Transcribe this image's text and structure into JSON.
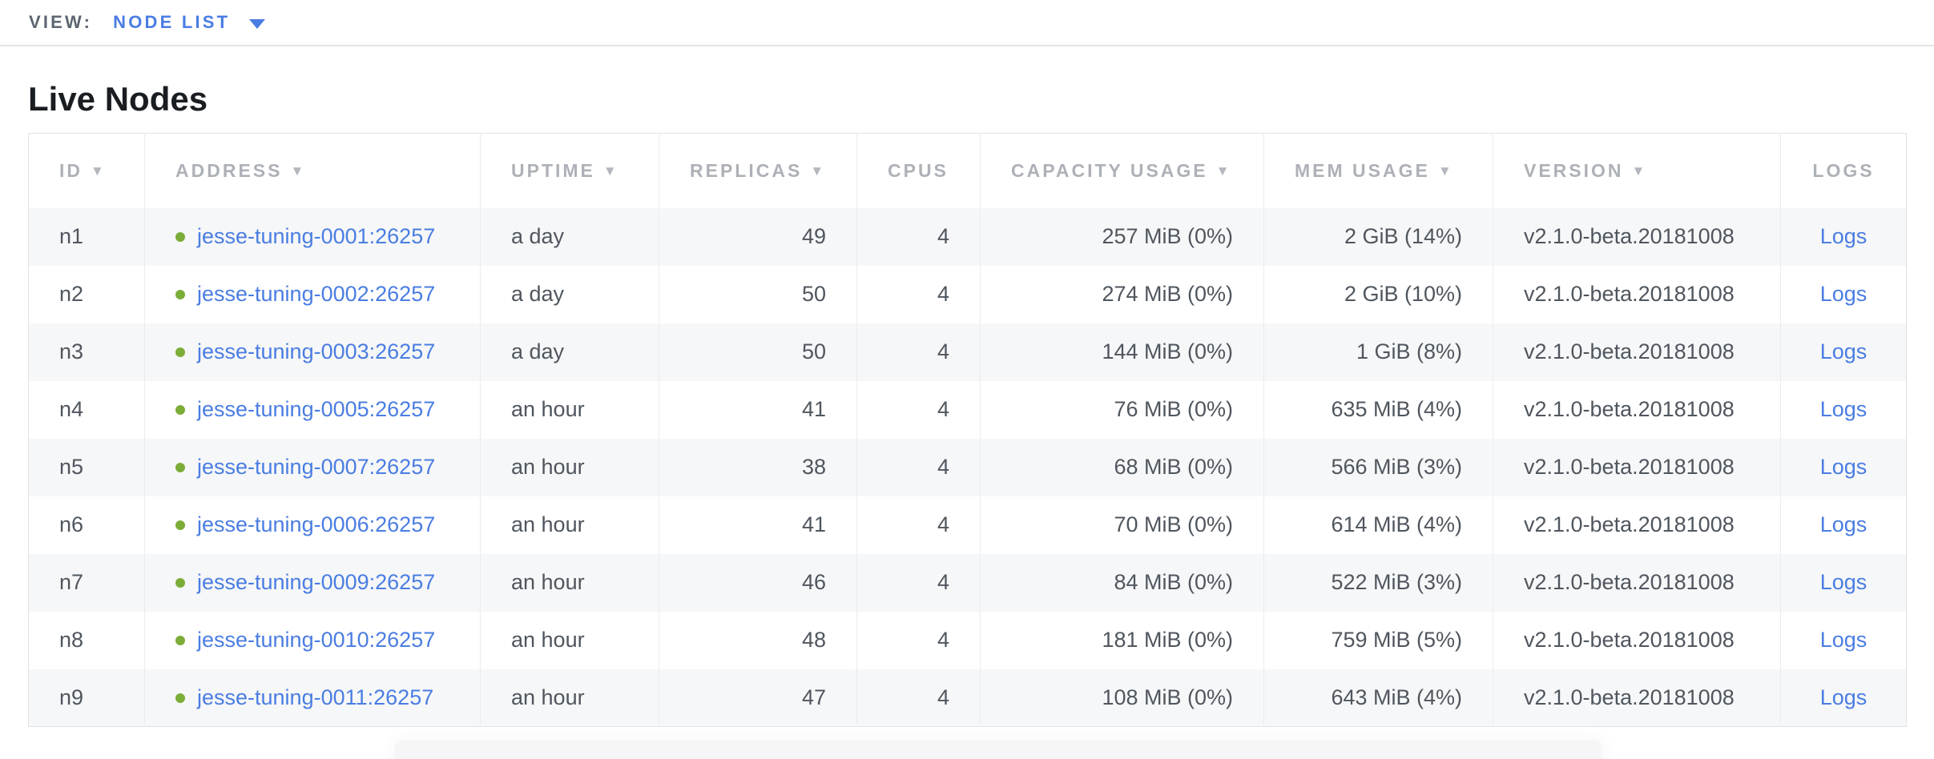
{
  "view_bar": {
    "label": "VIEW:",
    "selected": "NODE LIST"
  },
  "page": {
    "title": "Live Nodes"
  },
  "icons": {
    "sort_desc": "▼"
  },
  "colors": {
    "link_blue": "#4a7de2",
    "live_dot_green": "#7cad39",
    "header_gray": "#adb1b7",
    "body_text": "#4f565e",
    "row_stripe": "#f6f7f8"
  },
  "table": {
    "columns": [
      {
        "key": "id",
        "label": "ID",
        "sortable": true,
        "align": "left"
      },
      {
        "key": "address",
        "label": "ADDRESS",
        "sortable": true,
        "align": "left"
      },
      {
        "key": "uptime",
        "label": "UPTIME",
        "sortable": true,
        "align": "left"
      },
      {
        "key": "replicas",
        "label": "REPLICAS",
        "sortable": true,
        "align": "right"
      },
      {
        "key": "cpus",
        "label": "CPUS",
        "sortable": false,
        "align": "right"
      },
      {
        "key": "capacity_usage",
        "label": "CAPACITY USAGE",
        "sortable": true,
        "align": "right"
      },
      {
        "key": "mem_usage",
        "label": "MEM USAGE",
        "sortable": true,
        "align": "right"
      },
      {
        "key": "version",
        "label": "VERSION",
        "sortable": true,
        "align": "left"
      },
      {
        "key": "logs",
        "label": "LOGS",
        "sortable": false,
        "align": "center"
      }
    ],
    "rows": [
      {
        "id": "n1",
        "status": "live",
        "address": "jesse-tuning-0001:26257",
        "uptime": "a day",
        "replicas": "49",
        "cpus": "4",
        "capacity_usage": "257 MiB (0%)",
        "mem_usage": "2 GiB (14%)",
        "version": "v2.1.0-beta.20181008",
        "logs": "Logs"
      },
      {
        "id": "n2",
        "status": "live",
        "address": "jesse-tuning-0002:26257",
        "uptime": "a day",
        "replicas": "50",
        "cpus": "4",
        "capacity_usage": "274 MiB (0%)",
        "mem_usage": "2 GiB (10%)",
        "version": "v2.1.0-beta.20181008",
        "logs": "Logs"
      },
      {
        "id": "n3",
        "status": "live",
        "address": "jesse-tuning-0003:26257",
        "uptime": "a day",
        "replicas": "50",
        "cpus": "4",
        "capacity_usage": "144 MiB (0%)",
        "mem_usage": "1 GiB (8%)",
        "version": "v2.1.0-beta.20181008",
        "logs": "Logs"
      },
      {
        "id": "n4",
        "status": "live",
        "address": "jesse-tuning-0005:26257",
        "uptime": "an hour",
        "replicas": "41",
        "cpus": "4",
        "capacity_usage": "76 MiB (0%)",
        "mem_usage": "635 MiB (4%)",
        "version": "v2.1.0-beta.20181008",
        "logs": "Logs"
      },
      {
        "id": "n5",
        "status": "live",
        "address": "jesse-tuning-0007:26257",
        "uptime": "an hour",
        "replicas": "38",
        "cpus": "4",
        "capacity_usage": "68 MiB (0%)",
        "mem_usage": "566 MiB (3%)",
        "version": "v2.1.0-beta.20181008",
        "logs": "Logs"
      },
      {
        "id": "n6",
        "status": "live",
        "address": "jesse-tuning-0006:26257",
        "uptime": "an hour",
        "replicas": "41",
        "cpus": "4",
        "capacity_usage": "70 MiB (0%)",
        "mem_usage": "614 MiB (4%)",
        "version": "v2.1.0-beta.20181008",
        "logs": "Logs"
      },
      {
        "id": "n7",
        "status": "live",
        "address": "jesse-tuning-0009:26257",
        "uptime": "an hour",
        "replicas": "46",
        "cpus": "4",
        "capacity_usage": "84 MiB (0%)",
        "mem_usage": "522 MiB (3%)",
        "version": "v2.1.0-beta.20181008",
        "logs": "Logs"
      },
      {
        "id": "n8",
        "status": "live",
        "address": "jesse-tuning-0010:26257",
        "uptime": "an hour",
        "replicas": "48",
        "cpus": "4",
        "capacity_usage": "181 MiB (0%)",
        "mem_usage": "759 MiB (5%)",
        "version": "v2.1.0-beta.20181008",
        "logs": "Logs"
      },
      {
        "id": "n9",
        "status": "live",
        "address": "jesse-tuning-0011:26257",
        "uptime": "an hour",
        "replicas": "47",
        "cpus": "4",
        "capacity_usage": "108 MiB (0%)",
        "mem_usage": "643 MiB (4%)",
        "version": "v2.1.0-beta.20181008",
        "logs": "Logs"
      }
    ]
  }
}
